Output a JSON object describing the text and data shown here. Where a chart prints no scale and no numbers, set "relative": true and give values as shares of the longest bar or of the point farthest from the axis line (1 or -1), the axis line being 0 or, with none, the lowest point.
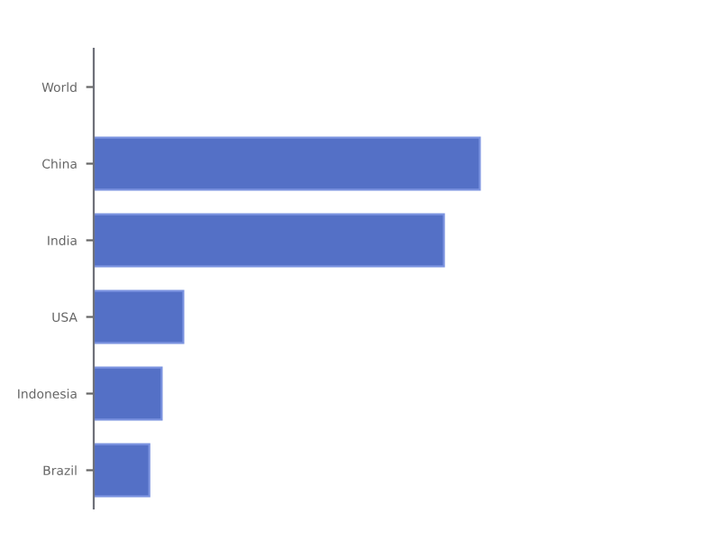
{
  "chart_data": {
    "type": "bar",
    "orientation": "horizontal",
    "relative": true,
    "categories": [
      "World",
      "China",
      "India",
      "USA",
      "Indonesia",
      "Brazil"
    ],
    "values": [
      null,
      1,
      0.907,
      0.232,
      0.176,
      0.144
    ],
    "color": "#5470c6"
  }
}
